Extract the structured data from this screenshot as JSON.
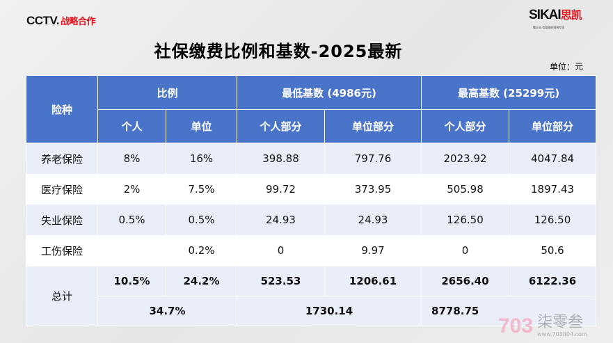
{
  "header": {
    "cctv": "CCTV.",
    "cctv_tag": "战略合作",
    "sikai": "SIKAI",
    "sikai_cn": "思凯",
    "sikai_sub": "懂企业 会管理的财税专家"
  },
  "title": "社保缴费比例和基数-2025最新",
  "unit": "单位：元",
  "table": {
    "h_type": "险种",
    "h_ratio": "比例",
    "h_min": "最低基数 (4986元)",
    "h_max": "最高基数 (25299元)",
    "sub": [
      "个人",
      "单位",
      "个人部分",
      "单位部分",
      "个人部分",
      "单位部分"
    ],
    "rows": [
      [
        "养老保险",
        "8%",
        "16%",
        "398.88",
        "797.76",
        "2023.92",
        "4047.84"
      ],
      [
        "医疗保险",
        "2%",
        "7.5%",
        "99.72",
        "373.95",
        "505.98",
        "1897.43"
      ],
      [
        "失业保险",
        "0.5%",
        "0.5%",
        "24.93",
        "24.93",
        "126.50",
        "126.50"
      ],
      [
        "工伤保险",
        "",
        "0.2%",
        "0",
        "9.97",
        "0",
        "50.6"
      ]
    ],
    "total_label": "总计",
    "total": [
      "10.5%",
      "24.2%",
      "523.53",
      "1206.61",
      "2656.40",
      "6122.36"
    ],
    "grand": [
      "34.7%",
      "1730.14",
      "8778.75"
    ]
  },
  "watermark": {
    "logo": "703",
    "name": "柒零叁",
    "url": "www.703804.com"
  },
  "colors": {
    "header": "#4a74c9",
    "stripe": "#e9eef8",
    "brand_red": "#e0141e"
  }
}
